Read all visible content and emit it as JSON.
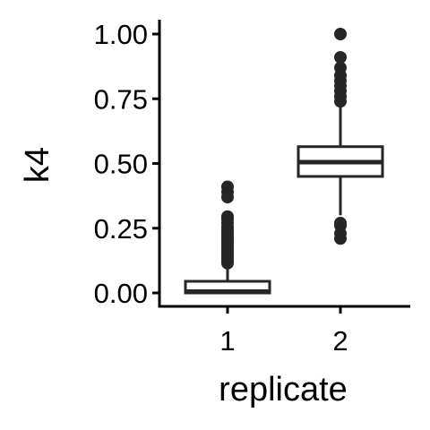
{
  "chart_data": {
    "type": "box",
    "title": "",
    "xlabel": "replicate",
    "ylabel": "k4",
    "ylim": [
      -0.05,
      1.05
    ],
    "yticks": [
      {
        "value": 0.0,
        "label": "0.00"
      },
      {
        "value": 0.25,
        "label": "0.25"
      },
      {
        "value": 0.5,
        "label": "0.50"
      },
      {
        "value": 0.75,
        "label": "0.75"
      },
      {
        "value": 1.0,
        "label": "1.00"
      }
    ],
    "categories": [
      "1",
      "2"
    ],
    "boxes": [
      {
        "category": "1",
        "whisker_low": 0.0,
        "q1": 0.0,
        "median": 0.005,
        "q3": 0.045,
        "whisker_high": 0.105,
        "outliers": [
          0.115,
          0.125,
          0.135,
          0.145,
          0.155,
          0.165,
          0.175,
          0.185,
          0.195,
          0.205,
          0.215,
          0.225,
          0.235,
          0.245,
          0.255,
          0.27,
          0.285,
          0.295,
          0.37,
          0.39,
          0.41
        ]
      },
      {
        "category": "2",
        "whisker_low": 0.3,
        "q1": 0.45,
        "median": 0.505,
        "q3": 0.565,
        "whisker_high": 0.73,
        "outliers": [
          0.21,
          0.23,
          0.26,
          0.27,
          0.74,
          0.76,
          0.78,
          0.8,
          0.82,
          0.84,
          0.87,
          0.91,
          1.0
        ]
      }
    ],
    "colors": {
      "box_stroke": "#262626",
      "box_fill": "#ffffff",
      "point": "#262626",
      "axis": "#000000"
    }
  }
}
